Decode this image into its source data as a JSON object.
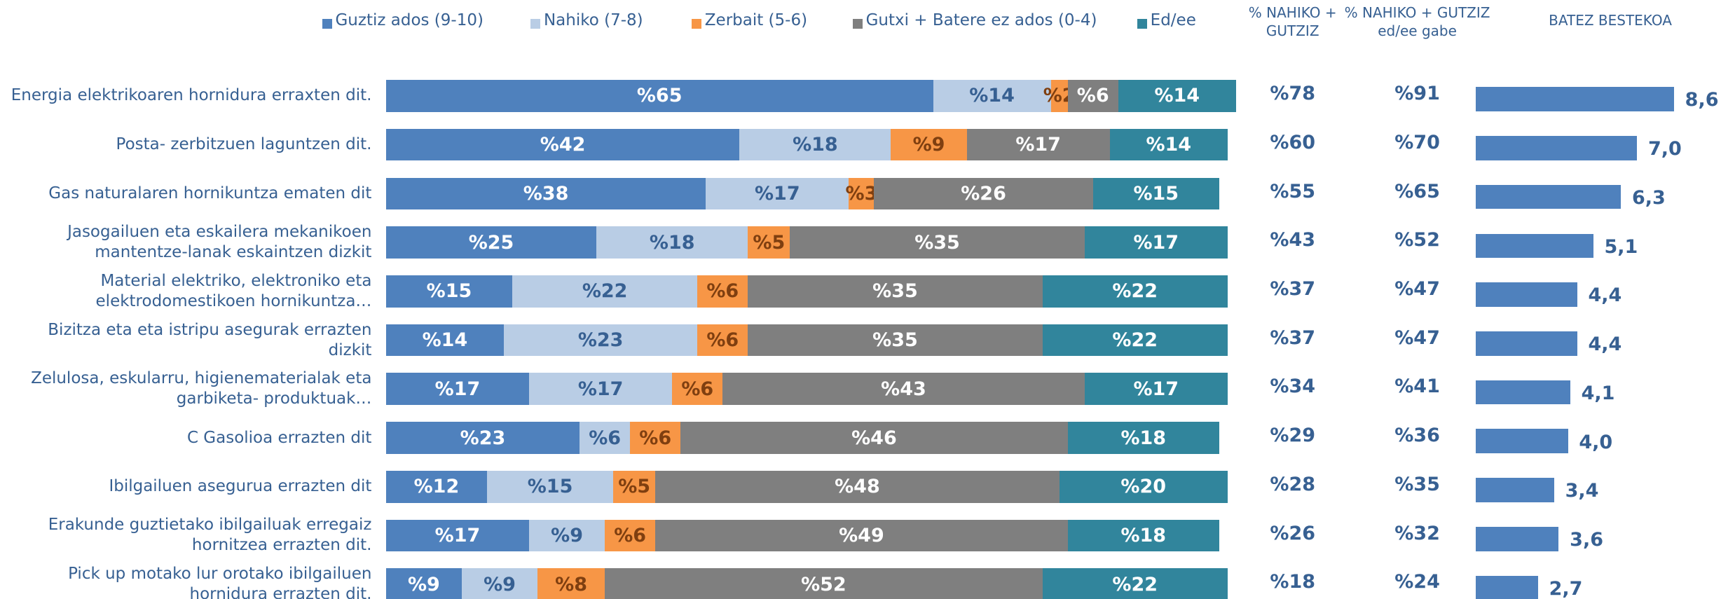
{
  "chart_data": [
    {
      "type": "stacked-bar",
      "categories": [
        "Energia elektrikoaren hornidura erraxten dit.",
        "Posta- zerbitzuen laguntzen dit.",
        "Gas naturalaren hornikuntza ematen dit",
        "Jasogailuen eta eskailera mekanikoen mantentze-lanak eskaintzen dizkit",
        "Material elektriko, elektroniko eta elektrodomestikoen hornikuntza…",
        "Bizitza eta eta istripu asegurak errazten dizkit",
        "Zelulosa, eskularru, higienematerialak eta garbiketa- produktuak…",
        "C Gasolioa errazten dit",
        "Ibilgailuen asegurua errazten dit",
        "Erakunde guztietako ibilgailuak erregaiz hornitzea errazten dit.",
        "Pick up motako lur orotako ibilgailuen hornidura errazten dit."
      ],
      "xlim": [
        0,
        100
      ],
      "series": [
        {
          "name": "Guztiz ados (9-10)",
          "color": "#4f81bd",
          "label_color": "#ffffff",
          "values": [
            65,
            42,
            38,
            25,
            15,
            14,
            17,
            23,
            12,
            17,
            9
          ],
          "value_labels": [
            "%65",
            "%42",
            "%38",
            "%25",
            "%15",
            "%14",
            "%17",
            "%23",
            "%12",
            "%17",
            "%9"
          ]
        },
        {
          "name": "Nahiko (7-8)",
          "color": "#b9cde5",
          "label_color": "#376092",
          "values": [
            14,
            18,
            17,
            18,
            22,
            23,
            17,
            6,
            15,
            9,
            9
          ],
          "value_labels": [
            "%14",
            "%18",
            "%17",
            "%18",
            "%22",
            "%23",
            "%17",
            "%6",
            "%15",
            "%9",
            "%9"
          ]
        },
        {
          "name": "Zerbait (5-6)",
          "color": "#f79646",
          "label_color": "#7f3f10",
          "values": [
            2,
            9,
            3,
            5,
            6,
            6,
            6,
            6,
            5,
            6,
            8
          ],
          "value_labels": [
            "%2",
            "%9",
            "%3",
            "%5",
            "%6",
            "%6",
            "%6",
            "%6",
            "%5",
            "%6",
            "%8"
          ]
        },
        {
          "name": "Gutxi + Batere ez ados (0-4)",
          "color": "#7f7f7f",
          "label_color": "#ffffff",
          "values": [
            6,
            17,
            26,
            35,
            35,
            35,
            43,
            46,
            48,
            49,
            52
          ],
          "value_labels": [
            "%6",
            "%17",
            "%26",
            "%35",
            "%35",
            "%35",
            "%43",
            "%46",
            "%48",
            "%49",
            "%52"
          ]
        },
        {
          "name": "Ed/ee",
          "color": "#31859c",
          "label_color": "#ffffff",
          "values": [
            14,
            14,
            15,
            17,
            22,
            22,
            17,
            18,
            20,
            18,
            22
          ],
          "value_labels": [
            "%14",
            "%14",
            "%15",
            "%17",
            "%22",
            "%22",
            "%17",
            "%18",
            "%20",
            "%18",
            "%22"
          ]
        }
      ]
    },
    {
      "type": "bar",
      "title": "BATEZ BESTEKOA",
      "color": "#4f81bd",
      "xlim": [
        0,
        10
      ],
      "values": [
        8.6,
        7.0,
        6.3,
        5.1,
        4.4,
        4.4,
        4.1,
        4.0,
        3.4,
        3.6,
        2.7
      ],
      "value_labels": [
        "8,6",
        "7,0",
        "6,3",
        "5,1",
        "4,4",
        "4,4",
        "4,1",
        "4,0",
        "3,4",
        "3,6",
        "2,7"
      ]
    }
  ],
  "columns": [
    {
      "title": [
        "% NAHIKO +",
        "GUTZIZ"
      ],
      "values": [
        78,
        60,
        55,
        43,
        37,
        37,
        34,
        29,
        28,
        26,
        18
      ],
      "value_labels": [
        "%78",
        "%60",
        "%55",
        "%43",
        "%37",
        "%37",
        "%34",
        "%29",
        "%28",
        "%26",
        "%18"
      ]
    },
    {
      "title": [
        "% NAHIKO + GUTZIZ",
        "ed/ee gabe"
      ],
      "values": [
        91,
        70,
        65,
        52,
        47,
        47,
        41,
        36,
        35,
        32,
        24
      ],
      "value_labels": [
        "%91",
        "%70",
        "%65",
        "%52",
        "%47",
        "%47",
        "%41",
        "%36",
        "%35",
        "%32",
        "%24"
      ]
    }
  ]
}
